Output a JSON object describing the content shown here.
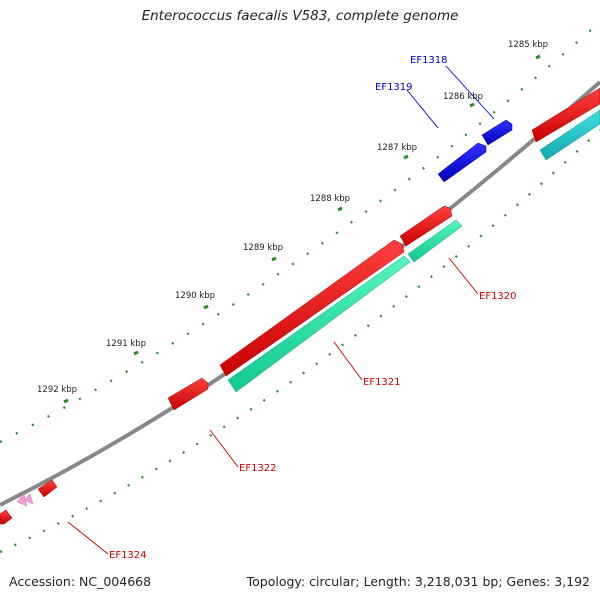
{
  "title": "Enterococcus faecalis V583, complete genome",
  "footer": {
    "accession": "Accession: NC_004668",
    "stats": "Topology: circular; Length: 3,218,031 bp; Genes: 3,192"
  },
  "ticks": [
    "1285 kbp",
    "1286 kbp",
    "1287 kbp",
    "1288 kbp",
    "1289 kbp",
    "1290 kbp",
    "1291 kbp",
    "1292 kbp"
  ],
  "genes": [
    {
      "name": "EF1318",
      "color": "#0000cc"
    },
    {
      "name": "EF1319",
      "color": "#0000cc"
    },
    {
      "name": "EF1320",
      "color": "#cc0000"
    },
    {
      "name": "EF1321",
      "color": "#cc0000"
    },
    {
      "name": "EF1322",
      "color": "#cc0000"
    },
    {
      "name": "EF1324",
      "color": "#cc0000"
    }
  ],
  "colors": {
    "forward_cds": "#ee0000",
    "reverse_cds": "#1010ee",
    "rna_track": "#22ddaa",
    "rna_track_alt": "#20c8c8",
    "backbone": "#888888",
    "tick_dots": "#2a8a2a",
    "pink_feature": "#f0a0d0"
  }
}
